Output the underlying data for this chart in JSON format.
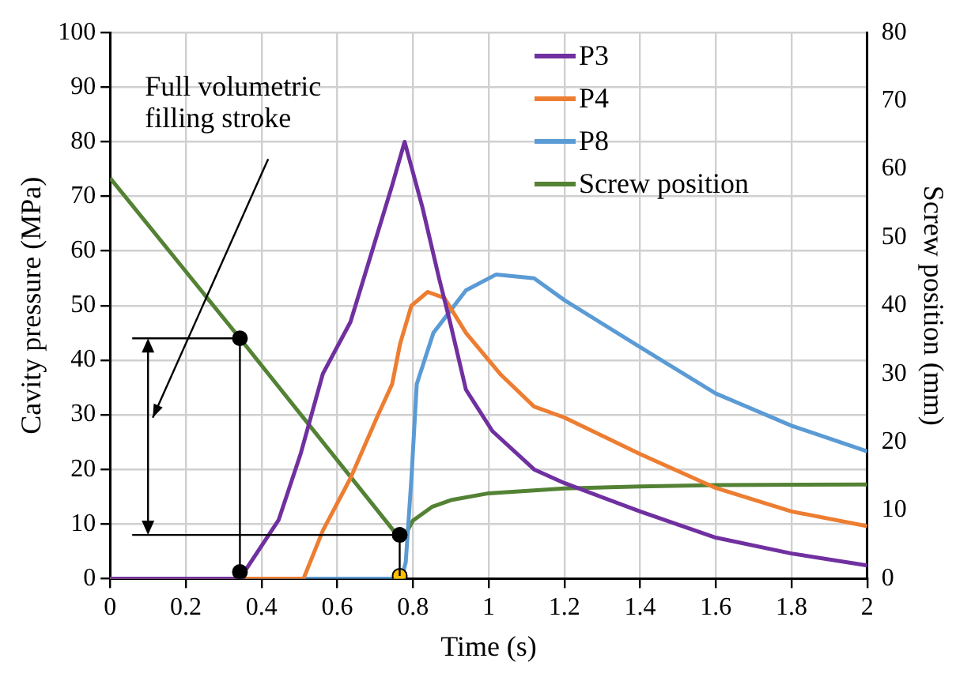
{
  "chart_data": {
    "type": "line",
    "xlabel": "Time (s)",
    "ylabel": "Cavity pressure (MPa)",
    "y2label": "Screw position (mm)",
    "xlim": [
      0,
      2
    ],
    "xticks": [
      0,
      0.2,
      0.4,
      0.6,
      0.8,
      1,
      1.2,
      1.4,
      1.6,
      1.8,
      2
    ],
    "ylim": [
      0,
      100
    ],
    "yticks": [
      0,
      10,
      20,
      30,
      40,
      50,
      60,
      70,
      80,
      90,
      100
    ],
    "y2lim": [
      0,
      80
    ],
    "y2ticks": [
      0,
      10,
      20,
      30,
      40,
      50,
      60,
      70,
      80
    ],
    "grid": true,
    "legend": "top right",
    "marker": "none",
    "line_style": "solid",
    "annotations": [
      "Full volumetric filling stroke"
    ],
    "series": [
      {
        "name": "P3",
        "color": "#7030a0",
        "x": [
          0,
          0.343,
          0.445,
          0.504,
          0.562,
          0.635,
          0.745,
          0.778,
          0.825,
          0.869,
          0.898,
          0.94,
          1.01,
          1.12,
          1.2,
          1.4,
          1.6,
          1.8,
          2.0
        ],
        "values": [
          0,
          0,
          10.7,
          23,
          37.5,
          47,
          72,
          80,
          68,
          55,
          47,
          34.6,
          27,
          20,
          17.5,
          12.3,
          7.5,
          4.6,
          2.4
        ]
      },
      {
        "name": "P4",
        "color": "#ed7d31",
        "x": [
          0,
          0.511,
          0.562,
          0.635,
          0.708,
          0.745,
          0.766,
          0.796,
          0.839,
          0.883,
          0.94,
          1.03,
          1.12,
          1.2,
          1.4,
          1.6,
          1.8,
          2.0
        ],
        "values": [
          0,
          0,
          8.8,
          18.4,
          30,
          35.6,
          43,
          50,
          52.5,
          51.4,
          45,
          37.5,
          31.5,
          29.5,
          22.8,
          16.6,
          12.3,
          9.6
        ]
      },
      {
        "name": "P8",
        "color": "#5b9bd5",
        "x": [
          0,
          0.77,
          0.781,
          0.796,
          0.81,
          0.854,
          0.94,
          1.02,
          1.12,
          1.2,
          1.4,
          1.6,
          1.8,
          2.0
        ],
        "values": [
          0,
          0,
          3,
          18.4,
          35.6,
          45,
          52.8,
          55.7,
          55,
          51,
          42.4,
          33.9,
          28,
          23.3
        ]
      },
      {
        "name": "Screw position",
        "color": "#548235",
        "axis": "y2",
        "x": [
          0,
          0.343,
          0.765,
          0.78,
          0.8,
          0.85,
          0.9,
          1.0,
          1.2,
          1.4,
          1.6,
          2.0
        ],
        "values": [
          58.7,
          35.2,
          5.9,
          6.5,
          8.5,
          10.5,
          11.5,
          12.5,
          13.2,
          13.5,
          13.7,
          13.8
        ]
      },
      {
        "type": "scatter",
        "marker": "circle",
        "color": "#000000",
        "colors": [
          "#000000",
          "#000000",
          "#000000",
          "#ffc000"
        ],
        "x": [
          0.343,
          0.343,
          0.765,
          0.765
        ],
        "values": [
          1.2,
          44,
          8,
          0.5
        ]
      }
    ]
  }
}
